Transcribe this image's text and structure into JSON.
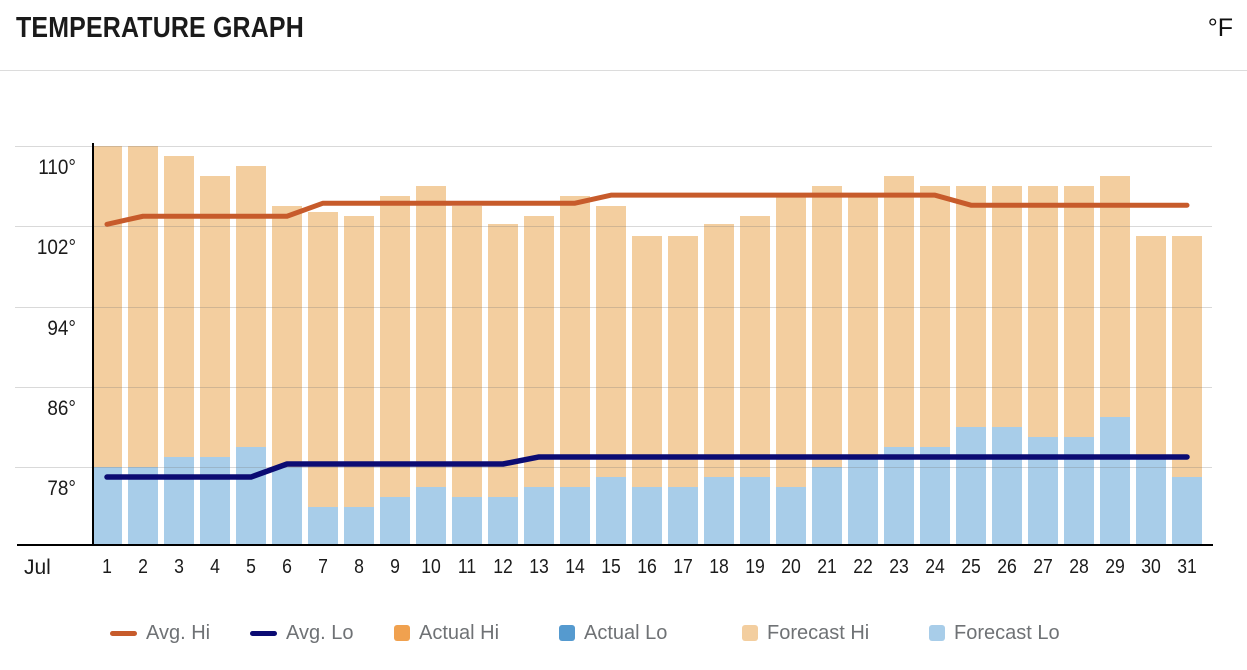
{
  "header": {
    "title": "TEMPERATURE GRAPH",
    "unit": "°F"
  },
  "chart_data": {
    "type": "bar",
    "subtype": "daily temperature range bars with average step-lines",
    "title": "TEMPERATURE GRAPH",
    "unit": "°F",
    "month_label": "Jul",
    "days": [
      "1",
      "2",
      "3",
      "4",
      "5",
      "6",
      "7",
      "8",
      "9",
      "10",
      "11",
      "12",
      "13",
      "14",
      "15",
      "16",
      "17",
      "18",
      "19",
      "20",
      "21",
      "22",
      "23",
      "24",
      "25",
      "26",
      "27",
      "28",
      "29",
      "30",
      "31"
    ],
    "y_ticks": [
      {
        "label": "110°",
        "value": 110
      },
      {
        "label": "102°",
        "value": 102
      },
      {
        "label": "94°",
        "value": 94
      },
      {
        "label": "86°",
        "value": 86
      },
      {
        "label": "78°",
        "value": 78
      }
    ],
    "ylim": [
      70.2,
      110.3
    ],
    "grid": true,
    "legend_position": "bottom",
    "series": [
      {
        "name": "Forecast Hi",
        "type": "bar",
        "color": "#F3CE9F",
        "values": [
          110,
          110,
          109,
          107,
          108,
          104,
          103.4,
          103,
          105,
          106,
          104,
          102.2,
          103,
          105,
          104,
          101,
          101,
          102.2,
          103,
          105,
          106,
          105,
          107,
          106,
          106,
          106,
          106,
          106,
          107,
          101,
          101
        ]
      },
      {
        "name": "Forecast Lo",
        "type": "bar",
        "color": "#A8CDE9",
        "values": [
          78,
          78,
          79,
          79,
          80,
          78,
          74,
          74,
          75,
          76,
          75,
          75,
          76,
          76,
          77,
          76,
          76,
          77,
          77,
          76,
          78,
          78.8,
          80,
          80,
          82,
          82,
          81,
          81,
          83,
          79,
          77
        ]
      },
      {
        "name": "Avg. Hi",
        "type": "line",
        "color": "#C75B2B",
        "values": [
          102.2,
          103,
          103,
          103,
          103,
          103,
          104.3,
          104.3,
          104.3,
          104.3,
          104.3,
          104.3,
          104.3,
          104.3,
          105.1,
          105.1,
          105.1,
          105.1,
          105.1,
          105.1,
          105.1,
          105.1,
          105.1,
          105.1,
          104.1,
          104.1,
          104.1,
          104.1,
          104.1,
          104.1,
          104.1
        ]
      },
      {
        "name": "Avg. Lo",
        "type": "line",
        "color": "#0B0B73",
        "values": [
          77,
          77,
          77,
          77,
          77,
          78.3,
          78.3,
          78.3,
          78.3,
          78.3,
          78.3,
          78.3,
          79,
          79,
          79,
          79,
          79,
          79,
          79,
          79,
          79,
          79,
          79,
          79,
          79,
          79,
          79,
          79,
          79,
          79,
          79
        ]
      }
    ],
    "legend": [
      {
        "label": "Avg. Hi",
        "swatch": "line",
        "color": "#C75B2B"
      },
      {
        "label": "Avg. Lo",
        "swatch": "line",
        "color": "#0B0B73"
      },
      {
        "label": "Actual Hi",
        "swatch": "square",
        "color": "#F0A14F"
      },
      {
        "label": "Actual Lo",
        "swatch": "square",
        "color": "#559ACF"
      },
      {
        "label": "Forecast Hi",
        "swatch": "square",
        "color": "#F3CE9F"
      },
      {
        "label": "Forecast Lo",
        "swatch": "square",
        "color": "#A8CDE9"
      }
    ]
  }
}
